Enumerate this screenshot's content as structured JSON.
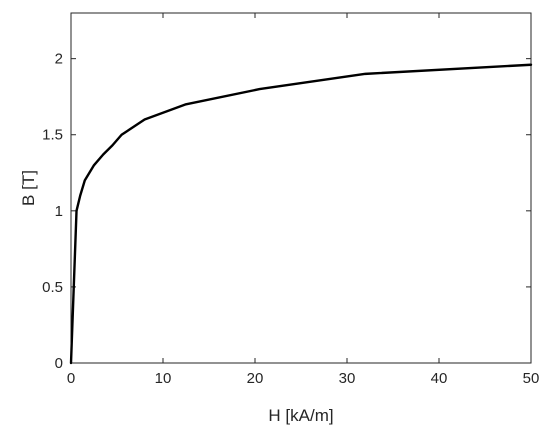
{
  "chart_data": {
    "type": "line",
    "title": "",
    "xlabel": "H [kA/m]",
    "ylabel": "B [T]",
    "xlim": [
      0,
      50
    ],
    "ylim": [
      0,
      2.3
    ],
    "xticks": [
      0,
      10,
      20,
      30,
      40,
      50
    ],
    "yticks": [
      0,
      0.5,
      1,
      1.5,
      2
    ],
    "xtick_labels": [
      "0",
      "10",
      "20",
      "30",
      "40",
      "50"
    ],
    "ytick_labels": [
      "0",
      "0.5",
      "1",
      "1.5",
      "2"
    ],
    "grid": false,
    "colors": {
      "line": "#000000",
      "axes": "#262626"
    },
    "series": [
      {
        "x": [
          0,
          0.6,
          1.0,
          1.5,
          2.5,
          3.5,
          4.5,
          5.5,
          8.0,
          12.5,
          20.5,
          32.0,
          50.0
        ],
        "y": [
          0,
          1.0,
          1.1,
          1.2,
          1.3,
          1.37,
          1.43,
          1.5,
          1.6,
          1.7,
          1.8,
          1.9,
          1.96
        ]
      }
    ]
  }
}
